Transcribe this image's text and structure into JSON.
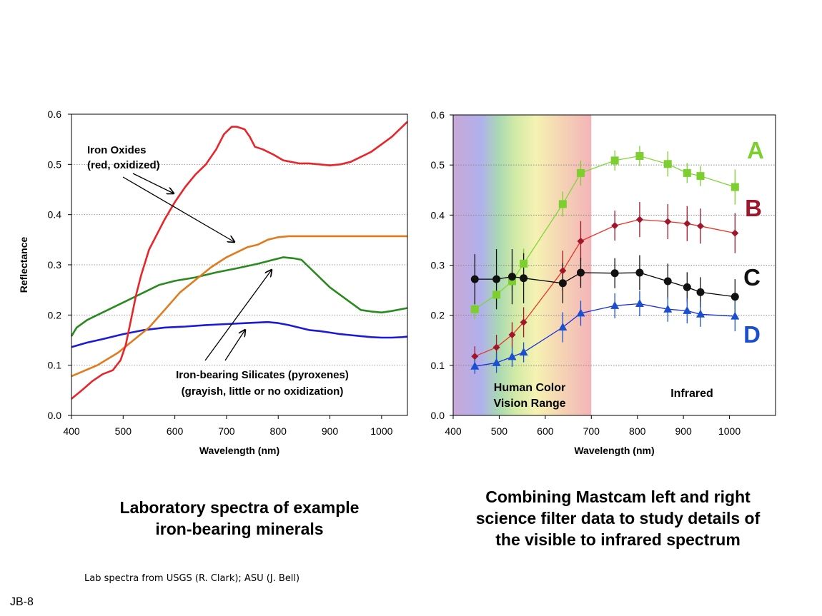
{
  "colors": {
    "red": "#e8252a",
    "orange": "#e07b1e",
    "green": "#2a8a1f",
    "blue": "#1a1ad8",
    "A": "#7ccf2e",
    "B": "#a0162a",
    "C": "#111111",
    "D": "#1a4fd0",
    "A_line": "#7fd63a",
    "B_line": "#e8342a",
    "C_line": "#000000",
    "D_line": "#1a2fd8"
  },
  "chart_data": [
    {
      "type": "line",
      "xlabel": "Wavelength (nm)",
      "ylabel": "Reflectance",
      "xlim": [
        400,
        1050
      ],
      "ylim": [
        0,
        0.6
      ],
      "xticks": [
        400,
        500,
        600,
        700,
        800,
        900,
        1000
      ],
      "yticks": [
        0.0,
        0.1,
        0.2,
        0.3,
        0.4,
        0.5,
        0.6
      ],
      "ytick_labels": [
        "0.0",
        "0.1",
        "0.2",
        "0.3",
        "0.4",
        "0.5",
        "0.6"
      ],
      "grid": "horizontal dotted",
      "series": [
        {
          "key": "iron-oxides",
          "color": "red",
          "x": [
            400,
            420,
            440,
            460,
            480,
            495,
            505,
            515,
            525,
            535,
            550,
            565,
            580,
            600,
            620,
            640,
            660,
            680,
            695,
            710,
            720,
            735,
            745,
            755,
            770,
            790,
            810,
            840,
            860,
            880,
            900,
            920,
            940,
            960,
            980,
            1000,
            1020,
            1040,
            1050
          ],
          "y": [
            0.033,
            0.05,
            0.068,
            0.082,
            0.09,
            0.11,
            0.14,
            0.19,
            0.24,
            0.28,
            0.33,
            0.36,
            0.39,
            0.425,
            0.455,
            0.48,
            0.5,
            0.53,
            0.56,
            0.575,
            0.575,
            0.57,
            0.555,
            0.535,
            0.53,
            0.52,
            0.508,
            0.502,
            0.502,
            0.5,
            0.498,
            0.5,
            0.505,
            0.515,
            0.525,
            0.54,
            0.555,
            0.575,
            0.585
          ]
        },
        {
          "key": "orange-mineral",
          "color": "orange",
          "x": [
            400,
            450,
            490,
            520,
            550,
            580,
            610,
            640,
            670,
            700,
            720,
            740,
            760,
            780,
            800,
            820,
            840,
            860,
            900,
            950,
            1000,
            1050
          ],
          "y": [
            0.078,
            0.1,
            0.125,
            0.15,
            0.175,
            0.21,
            0.245,
            0.27,
            0.295,
            0.315,
            0.325,
            0.335,
            0.34,
            0.35,
            0.355,
            0.357,
            0.357,
            0.357,
            0.357,
            0.357,
            0.357,
            0.357
          ]
        },
        {
          "key": "silicate-green",
          "color": "green",
          "x": [
            400,
            410,
            430,
            460,
            500,
            540,
            570,
            600,
            640,
            680,
            720,
            760,
            790,
            810,
            830,
            845,
            860,
            880,
            900,
            920,
            940,
            960,
            980,
            1000,
            1020,
            1040,
            1050
          ],
          "y": [
            0.158,
            0.175,
            0.19,
            0.205,
            0.225,
            0.245,
            0.26,
            0.268,
            0.275,
            0.285,
            0.293,
            0.302,
            0.31,
            0.315,
            0.313,
            0.31,
            0.295,
            0.275,
            0.255,
            0.24,
            0.225,
            0.21,
            0.207,
            0.205,
            0.208,
            0.212,
            0.214
          ]
        },
        {
          "key": "silicate-blue",
          "color": "blue",
          "x": [
            400,
            430,
            460,
            500,
            540,
            580,
            620,
            660,
            700,
            740,
            780,
            800,
            820,
            840,
            860,
            880,
            900,
            920,
            940,
            960,
            980,
            1000,
            1020,
            1040,
            1050
          ],
          "y": [
            0.136,
            0.145,
            0.152,
            0.162,
            0.17,
            0.175,
            0.177,
            0.18,
            0.182,
            0.184,
            0.186,
            0.184,
            0.18,
            0.175,
            0.17,
            0.168,
            0.165,
            0.162,
            0.16,
            0.158,
            0.156,
            0.155,
            0.155,
            0.156,
            0.157
          ]
        }
      ],
      "annotations": [
        {
          "key": "iron-oxides",
          "lines": [
            "Iron Oxides",
            "(red, oxidized)"
          ]
        },
        {
          "key": "silicates",
          "lines": [
            "Iron-bearing Silicates (pyroxenes)",
            "(grayish, little or no oxidization)"
          ]
        }
      ]
    },
    {
      "type": "line",
      "xlabel": "Wavelength (nm)",
      "xlim": [
        400,
        1100
      ],
      "ylim": [
        0,
        0.6
      ],
      "xticks": [
        400,
        500,
        600,
        700,
        800,
        900,
        1000
      ],
      "yticks": [
        0.0,
        0.1,
        0.2,
        0.3,
        0.4,
        0.5,
        0.6
      ],
      "ytick_labels": [
        "0.0",
        "0.1",
        "0.2",
        "0.3",
        "0.4",
        "0.5",
        "0.6"
      ],
      "grid": "horizontal dotted",
      "regions": [
        {
          "key": "visible",
          "x_range": [
            400,
            700
          ],
          "lines": [
            "Human Color",
            "Vision Range"
          ]
        },
        {
          "key": "infrared",
          "x_range": [
            700,
            1100
          ],
          "lines": [
            "Infrared"
          ]
        }
      ],
      "x": [
        447,
        494,
        528,
        553,
        638,
        677,
        751,
        805,
        866,
        908,
        937,
        1012
      ],
      "series": [
        {
          "name": "A",
          "marker": "square",
          "color": "A",
          "y": [
            0.212,
            0.241,
            0.268,
            0.303,
            0.422,
            0.484,
            0.509,
            0.518,
            0.502,
            0.484,
            0.478,
            0.456
          ],
          "err": [
            0.02,
            0.02,
            0.02,
            0.03,
            0.025,
            0.025,
            0.02,
            0.02,
            0.025,
            0.02,
            0.02,
            0.035
          ]
        },
        {
          "name": "B",
          "marker": "diamond",
          "color": "B",
          "y": [
            0.118,
            0.136,
            0.161,
            0.186,
            0.289,
            0.348,
            0.379,
            0.391,
            0.387,
            0.383,
            0.378,
            0.364
          ],
          "err": [
            0.02,
            0.025,
            0.025,
            0.03,
            0.04,
            0.04,
            0.03,
            0.035,
            0.035,
            0.035,
            0.035,
            0.04
          ]
        },
        {
          "name": "C",
          "marker": "circle",
          "color": "C",
          "y": [
            0.272,
            0.272,
            0.277,
            0.274,
            0.264,
            0.285,
            0.284,
            0.285,
            0.268,
            0.256,
            0.246,
            0.237
          ],
          "err": [
            0.05,
            0.06,
            0.055,
            0.05,
            0.04,
            0.03,
            0.03,
            0.035,
            0.035,
            0.03,
            0.03,
            0.035
          ]
        },
        {
          "name": "D",
          "marker": "triangle",
          "color": "D",
          "y": [
            0.098,
            0.105,
            0.117,
            0.126,
            0.176,
            0.204,
            0.219,
            0.223,
            0.212,
            0.209,
            0.202,
            0.198
          ],
          "err": [
            0.015,
            0.02,
            0.02,
            0.02,
            0.03,
            0.025,
            0.025,
            0.025,
            0.025,
            0.025,
            0.025,
            0.03
          ]
        }
      ]
    }
  ],
  "captions": {
    "left": [
      "Laboratory spectra of example",
      "iron-bearing minerals"
    ],
    "right": [
      "Combining Mastcam left and right",
      "science filter data to study details of",
      "the visible to infrared spectrum"
    ]
  },
  "credit": "Lab spectra from USGS (R. Clark); ASU (J. Bell)",
  "slide_id": "JB-8"
}
